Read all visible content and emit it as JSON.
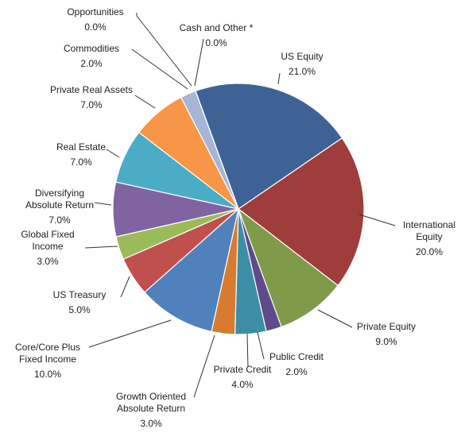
{
  "chart_data": {
    "type": "pie",
    "categories": [
      "US Equity",
      "International Equity",
      "Private Equity",
      "Public Credit",
      "Private Credit",
      "Growth Oriented Absolute Return",
      "Core/Core Plus Fixed Income",
      "US Treasury",
      "Global Fixed Income",
      "Diversifying Absolute Return",
      "Real Estate",
      "Private Real Assets",
      "Commodities",
      "Opportunities",
      "Cash and Other *"
    ],
    "values": [
      21,
      20,
      9,
      2,
      4,
      3,
      10,
      5,
      3,
      7,
      7,
      7,
      2,
      0,
      0
    ],
    "value_labels": [
      "21.0%",
      "20.0%",
      "9.0%",
      "2.0%",
      "4.0%",
      "3.0%",
      "10.0%",
      "5.0%",
      "3.0%",
      "7.0%",
      "7.0%",
      "7.0%",
      "2.0%",
      "0.0%",
      "0.0%"
    ],
    "colors": [
      "#3f6296",
      "#9e3d3b",
      "#7f9a48",
      "#5f4b8b",
      "#3b8ea5",
      "#d87b30",
      "#4f81bd",
      "#c0504d",
      "#9bbb59",
      "#8064a2",
      "#4bacc6",
      "#f79646",
      "#a5b5d5",
      "#8eb4e3",
      "#bfbfbf"
    ]
  }
}
